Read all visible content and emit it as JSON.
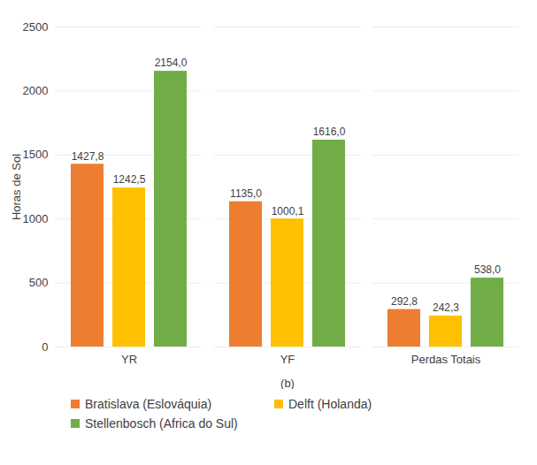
{
  "chart_data": {
    "type": "bar",
    "xlabel": "(b)",
    "ylabel": "Horas de Sol",
    "categories": [
      "YR",
      "YF",
      "Perdas Totais"
    ],
    "series": [
      {
        "name": "Bratislava (Eslováquia)",
        "color": "#ED7D31",
        "values": [
          1427.8,
          1135.0,
          292.8
        ],
        "value_labels": [
          "1427,8",
          "1135,0",
          "292,8"
        ]
      },
      {
        "name": "Delft (Holanda)",
        "color": "#FFC000",
        "values": [
          1242.5,
          1000.1,
          242.3
        ],
        "value_labels": [
          "1242,5",
          "1000,1",
          "242,3"
        ]
      },
      {
        "name": "Stellenbosch (Africa do Sul)",
        "color": "#70AD47",
        "values": [
          2154.0,
          1616.0,
          538.0
        ],
        "value_labels": [
          "2154,0",
          "1616,0",
          "538,0"
        ]
      }
    ],
    "ylim": [
      0,
      2500
    ],
    "yticks": [
      0,
      500,
      1000,
      1500,
      2000,
      2500
    ],
    "grid": true,
    "data_labels": true,
    "legend": "bottom"
  }
}
